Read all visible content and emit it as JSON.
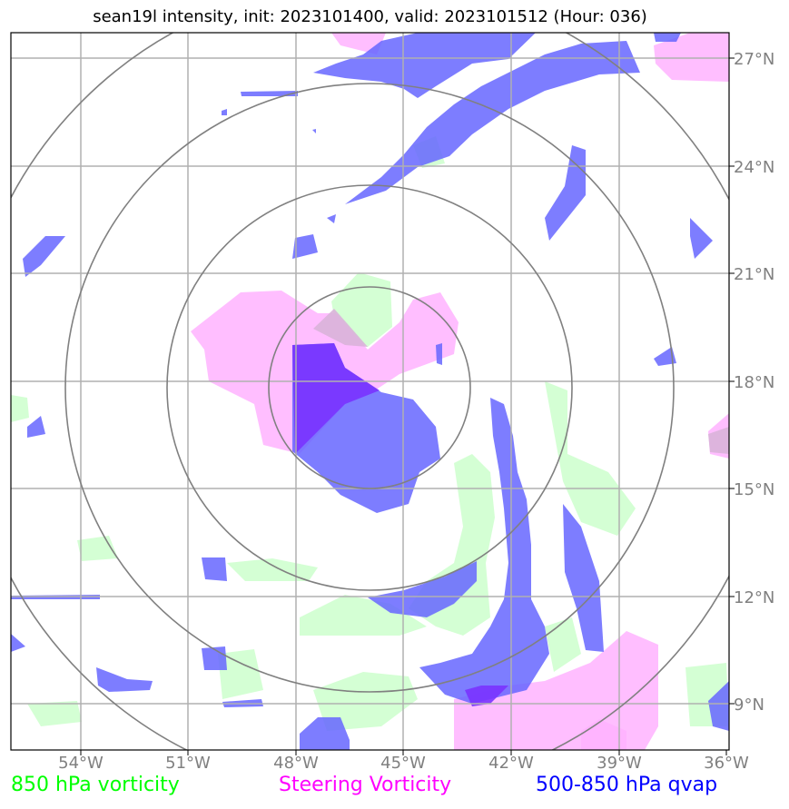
{
  "title": "sean19l intensity, init: 2023101400, valid: 2023101512 (Hour: 036)",
  "legend": [
    {
      "label": "850 hPa vorticity",
      "color": "#00ff00"
    },
    {
      "label": "Steering Vorticity",
      "color": "#ff00ff"
    },
    {
      "label": "500-850 hPa qvap",
      "color": "#0000ff"
    }
  ],
  "map": {
    "lon_range": [
      -56,
      -36
    ],
    "lat_range": [
      8,
      28
    ],
    "lon_ticks": [
      "54°W",
      "51°W",
      "48°W",
      "45°W",
      "42°W",
      "39°W",
      "36°W"
    ],
    "lat_ticks": [
      "27°N",
      "24°N",
      "21°N",
      "18°N",
      "15°N",
      "12°N",
      "9°N"
    ],
    "range_rings": 4,
    "gridlines": true
  },
  "fill_colors": {
    "green": "#ccffcc",
    "pink": "#ffb3ff",
    "blue": "#6666ff",
    "purple": "#7a33ff"
  }
}
